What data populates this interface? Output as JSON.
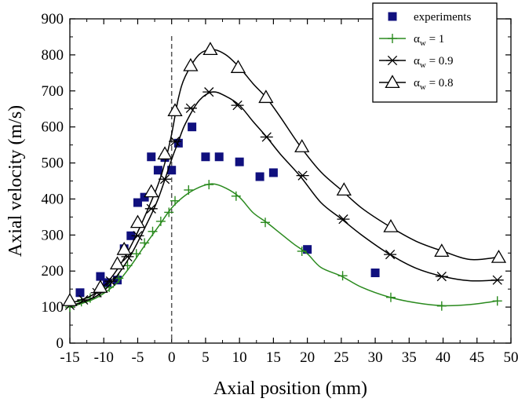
{
  "chart_data": {
    "type": "line",
    "xlabel": "Axial position (mm)",
    "ylabel": "Axial velocity (m/s)",
    "xlim": [
      -15,
      50
    ],
    "ylim": [
      0,
      900
    ],
    "x_ticks": [
      "-15",
      "-10",
      "-5",
      "0",
      "5",
      "10",
      "15",
      "20",
      "25",
      "30",
      "35",
      "40",
      "45",
      "50"
    ],
    "y_ticks": [
      "0",
      "100",
      "200",
      "300",
      "400",
      "500",
      "600",
      "700",
      "800",
      "900"
    ],
    "reference_line": {
      "x": 0,
      "style": "dashed"
    },
    "legend_position": "top-right",
    "series": [
      {
        "name": "experiments",
        "kind": "scatter",
        "marker": "square",
        "color": "#10107e",
        "points": [
          [
            -13.5,
            140
          ],
          [
            -10.5,
            185
          ],
          [
            -9.5,
            168
          ],
          [
            -8,
            175
          ],
          [
            -7,
            262
          ],
          [
            -6,
            298
          ],
          [
            -5,
            390
          ],
          [
            -4,
            405
          ],
          [
            -3,
            517
          ],
          [
            -2,
            480
          ],
          [
            -1,
            515
          ],
          [
            0,
            480
          ],
          [
            1,
            555
          ],
          [
            3,
            600
          ],
          [
            5,
            517
          ],
          [
            7,
            517
          ],
          [
            10,
            503
          ],
          [
            13,
            462
          ],
          [
            15,
            473
          ],
          [
            20,
            260
          ],
          [
            30,
            195
          ]
        ]
      },
      {
        "name": "1",
        "legend_prefix": "α",
        "legend_sub": "w",
        "kind": "line",
        "marker": "plus",
        "color": "#2a8a1e",
        "line": [
          [
            -15,
            100
          ],
          [
            -12,
            118
          ],
          [
            -10,
            138
          ],
          [
            -8,
            168
          ],
          [
            -6,
            215
          ],
          [
            -4,
            270
          ],
          [
            -2,
            322
          ],
          [
            0,
            375
          ],
          [
            2,
            410
          ],
          [
            4,
            432
          ],
          [
            6,
            442
          ],
          [
            8,
            430
          ],
          [
            10,
            405
          ],
          [
            12,
            362
          ],
          [
            14,
            335
          ],
          [
            16,
            305
          ],
          [
            18,
            275
          ],
          [
            20,
            248
          ],
          [
            22,
            210
          ],
          [
            25,
            186
          ],
          [
            28,
            155
          ],
          [
            32,
            128
          ],
          [
            36,
            112
          ],
          [
            40,
            104
          ],
          [
            44,
            107
          ],
          [
            48,
            117
          ]
        ],
        "markers": [
          [
            -15,
            100
          ],
          [
            -13.3,
            115
          ],
          [
            -12,
            125
          ],
          [
            -10.6,
            140
          ],
          [
            -9.2,
            155
          ],
          [
            -7.8,
            180
          ],
          [
            -6.5,
            215
          ],
          [
            -5.2,
            248
          ],
          [
            -4,
            278
          ],
          [
            -2.8,
            310
          ],
          [
            -1.6,
            338
          ],
          [
            -0.4,
            363
          ],
          [
            0.5,
            395
          ],
          [
            2.5,
            425
          ],
          [
            5.5,
            440
          ],
          [
            9.5,
            408
          ],
          [
            13.8,
            335
          ],
          [
            19.2,
            255
          ],
          [
            25.2,
            187
          ],
          [
            32.3,
            127
          ],
          [
            39.8,
            103
          ],
          [
            48,
            117
          ]
        ]
      },
      {
        "name": "0.9",
        "legend_prefix": "α",
        "legend_sub": "w",
        "kind": "line",
        "marker": "asterisk",
        "color": "#000000",
        "line": [
          [
            -15,
            103
          ],
          [
            -12,
            122
          ],
          [
            -10,
            145
          ],
          [
            -8,
            188
          ],
          [
            -6,
            245
          ],
          [
            -4,
            318
          ],
          [
            -2,
            400
          ],
          [
            0,
            510
          ],
          [
            1,
            560
          ],
          [
            2,
            608
          ],
          [
            4,
            672
          ],
          [
            6,
            697
          ],
          [
            8,
            685
          ],
          [
            10,
            660
          ],
          [
            12,
            615
          ],
          [
            14,
            572
          ],
          [
            16,
            525
          ],
          [
            19,
            462
          ],
          [
            22,
            390
          ],
          [
            25,
            345
          ],
          [
            28,
            300
          ],
          [
            32,
            248
          ],
          [
            36,
            208
          ],
          [
            40,
            185
          ],
          [
            44,
            173
          ],
          [
            48,
            175
          ]
        ],
        "markers": [
          [
            -15,
            105
          ],
          [
            -13,
            120
          ],
          [
            -11,
            140
          ],
          [
            -9,
            172
          ],
          [
            -6.5,
            240
          ],
          [
            -5,
            298
          ],
          [
            -3,
            373
          ],
          [
            -1,
            455
          ],
          [
            0.5,
            560
          ],
          [
            2.8,
            652
          ],
          [
            5.5,
            697
          ],
          [
            9.7,
            660
          ],
          [
            14,
            572
          ],
          [
            19.3,
            465
          ],
          [
            25.3,
            344
          ],
          [
            32.2,
            246
          ],
          [
            39.8,
            185
          ],
          [
            48,
            175
          ]
        ]
      },
      {
        "name": "0.8",
        "legend_prefix": "α",
        "legend_sub": "w",
        "kind": "line",
        "marker": "triangle",
        "color": "#000000",
        "line": [
          [
            -15,
            110
          ],
          [
            -12,
            130
          ],
          [
            -10,
            158
          ],
          [
            -8,
            205
          ],
          [
            -6,
            270
          ],
          [
            -4,
            350
          ],
          [
            -2,
            440
          ],
          [
            -1,
            500
          ],
          [
            0,
            580
          ],
          [
            1,
            680
          ],
          [
            2,
            740
          ],
          [
            4,
            800
          ],
          [
            6,
            815
          ],
          [
            8,
            800
          ],
          [
            10,
            765
          ],
          [
            12,
            720
          ],
          [
            14,
            680
          ],
          [
            16,
            628
          ],
          [
            19,
            545
          ],
          [
            22,
            475
          ],
          [
            25,
            425
          ],
          [
            28,
            375
          ],
          [
            32,
            325
          ],
          [
            36,
            283
          ],
          [
            40,
            255
          ],
          [
            44,
            232
          ],
          [
            48,
            238
          ]
        ],
        "markers": [
          [
            -15,
            118
          ],
          [
            -10.5,
            155
          ],
          [
            -8,
            220
          ],
          [
            -7,
            260
          ],
          [
            -5,
            335
          ],
          [
            -3,
            420
          ],
          [
            -1,
            525
          ],
          [
            0.5,
            645
          ],
          [
            2.8,
            770
          ],
          [
            5.7,
            815
          ],
          [
            9.8,
            765
          ],
          [
            13.9,
            682
          ],
          [
            19.2,
            545
          ],
          [
            25.4,
            425
          ],
          [
            32.3,
            323
          ],
          [
            39.8,
            255
          ],
          [
            48.2,
            238
          ]
        ]
      }
    ]
  }
}
